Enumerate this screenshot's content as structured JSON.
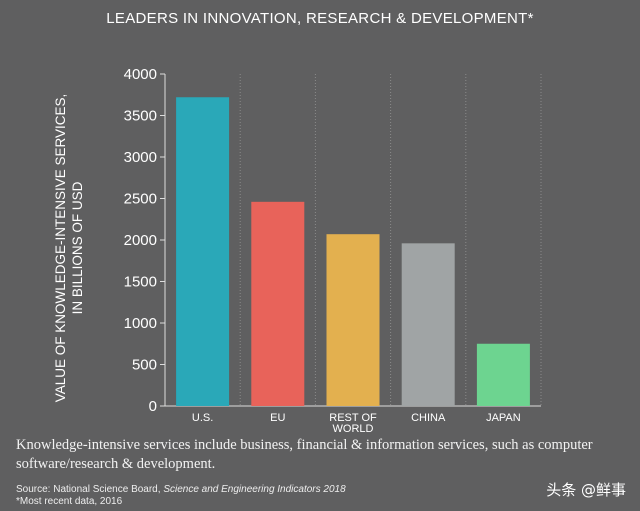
{
  "chart_data": {
    "type": "bar",
    "title": "LEADERS IN INNOVATION, RESEARCH & DEVELOPMENT*",
    "ylabel_line1": "VALUE OF KNOWLEDGE-INTENSIVE SERVICES,",
    "ylabel_line2": "IN BILLIONS OF USD",
    "xlabel": "",
    "categories": [
      "U.S.",
      "EU",
      "REST OF WORLD",
      "CHINA",
      "JAPAN"
    ],
    "category_lines": [
      [
        "U.S."
      ],
      [
        "EU"
      ],
      [
        "REST OF",
        "WORLD"
      ],
      [
        "CHINA"
      ],
      [
        "JAPAN"
      ]
    ],
    "values": [
      3720,
      2460,
      2070,
      1960,
      750
    ],
    "colors": [
      "#2aa8b8",
      "#e8635a",
      "#e3b04f",
      "#a0a4a5",
      "#6dd490"
    ],
    "ylim": [
      0,
      4000
    ],
    "yticks": [
      0,
      500,
      1000,
      1500,
      2000,
      2500,
      3000,
      3500,
      4000
    ],
    "grid": "vertical dotted"
  },
  "note": "Knowledge-intensive services include business, financial & information services, such as computer software/research & development.",
  "source": {
    "prefix": "Source: National Science Board, ",
    "publication": "Science and Engineering Indicators 2018",
    "footnote": "*Most recent data, 2016"
  },
  "watermark": "头条 @鲜事"
}
